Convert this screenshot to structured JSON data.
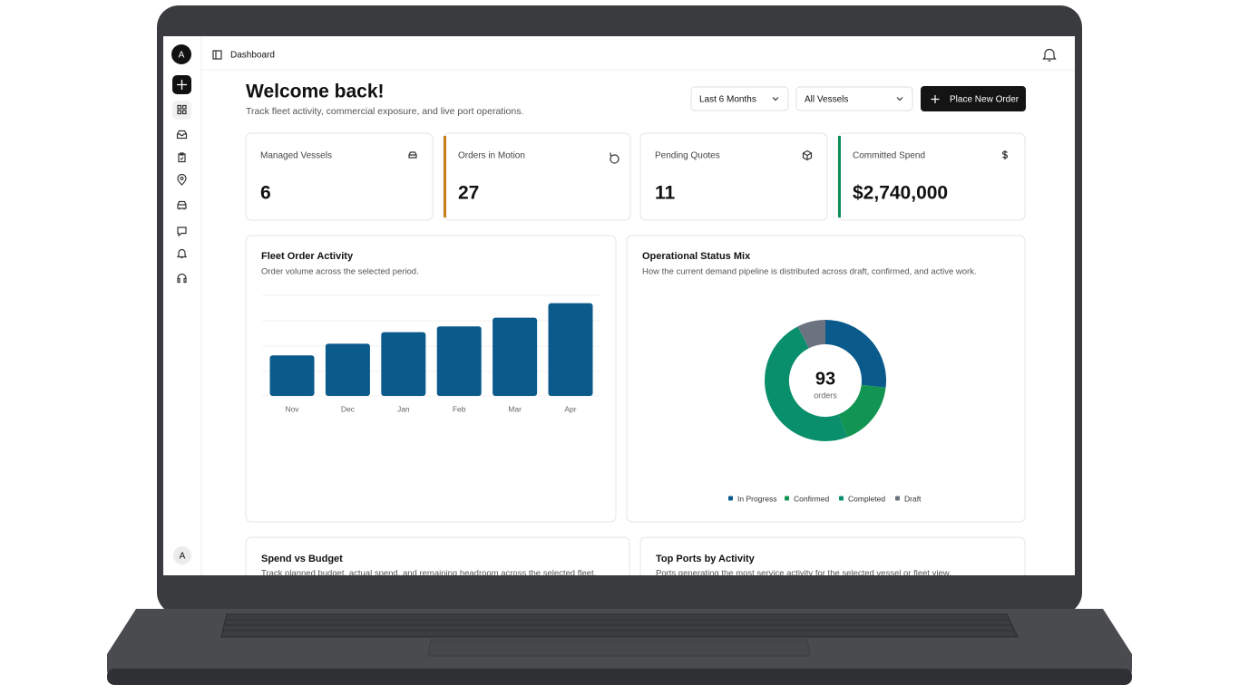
{
  "app": {
    "avatar": "A",
    "breadcrumb": "Dashboard",
    "user_avatar": "A"
  },
  "header": {
    "title": "Welcome back!",
    "subtitle": "Track fleet activity, commercial exposure, and live port operations."
  },
  "filters": [
    "Last 6 Months",
    "All Vessels"
  ],
  "action": "Place New Order",
  "stats": [
    {
      "label": "Managed Vessels",
      "value": "6"
    },
    {
      "label": "Orders in Motion",
      "value": "27"
    },
    {
      "label": "Pending Quotes",
      "value": "11"
    },
    {
      "label": "Committed Spend",
      "value": "$2,740,000"
    }
  ],
  "chart_data": [
    {
      "type": "bar",
      "title": "Fleet Order Activity",
      "subtitle": "Order volume across the selected period.",
      "categories": [
        "Nov",
        "Dec",
        "Jan",
        "Feb",
        "Mar",
        "Apr"
      ],
      "values": [
        14,
        18,
        22,
        24,
        27,
        32
      ],
      "color": "#0b5a8c"
    },
    {
      "type": "pie",
      "title": "Operational Status Mix",
      "subtitle": "How the current demand pipeline is distributed across draft, confirmed, and active work.",
      "total": 93,
      "total_label": "orders",
      "categories": [
        "In Progress",
        "Confirmed",
        "Completed",
        "Draft"
      ],
      "values": [
        25,
        16,
        45,
        7
      ],
      "colors": [
        "#0b5a8c",
        "#129452",
        "#0a8f6c",
        "#6b7280"
      ]
    }
  ],
  "panels": [
    {
      "title": "Spend vs Budget",
      "subtitle": "Track planned budget, actual spend, and remaining headroom across the selected fleet."
    },
    {
      "title": "Top Ports by Activity",
      "subtitle": "Ports generating the most service activity for the selected vessel or fleet view."
    }
  ]
}
